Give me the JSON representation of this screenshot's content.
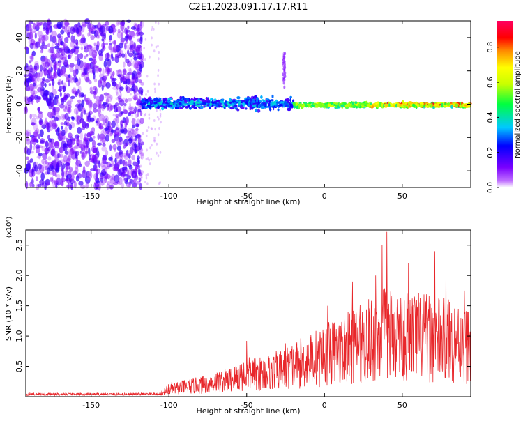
{
  "title": "C2E1.2023.091.17.17.R11",
  "chart_data": [
    {
      "type": "heatmap",
      "xlabel": "Height of straight line (km)",
      "ylabel": "Frequency (Hz)",
      "xlim": [
        -192,
        94
      ],
      "ylim": [
        -50,
        50
      ],
      "xticks": [
        -150,
        -100,
        -50,
        0,
        50
      ],
      "yticks": [
        -40,
        -20,
        0,
        20,
        40
      ],
      "colorbar": {
        "label": "Normalized spectral amplitude",
        "range": [
          0.0,
          0.95
        ],
        "ticks": [
          0.0,
          0.2,
          0.4,
          0.6,
          0.8
        ]
      },
      "description_regions": [
        {
          "x_range": [
            -192,
            -117
          ],
          "freq_range": [
            -50,
            50
          ],
          "amplitude": "low, scattered noise"
        },
        {
          "x_range": [
            -117,
            -20
          ],
          "freq_range": [
            -10,
            10
          ],
          "amplitude": "medium (0.2-0.5)"
        },
        {
          "x_range": [
            -20,
            94
          ],
          "freq_range": [
            -4,
            4
          ],
          "amplitude": "high (0.6-0.95)"
        }
      ]
    },
    {
      "type": "line",
      "xlabel": "Height of straight line (km)",
      "ylabel": "SNR (10 * v/v)",
      "y_multiplier": "(x10⁴)",
      "xlim": [
        -192,
        94
      ],
      "ylim": [
        0,
        2.75
      ],
      "xticks": [
        -150,
        -100,
        -50,
        0,
        50
      ],
      "yticks": [
        0.5,
        1.0,
        1.5,
        2.0,
        2.5
      ],
      "series": [
        {
          "color": "#e8262a",
          "envelope": {
            "x": [
              -192,
              -150,
              -120,
              -105,
              -100,
              -80,
              -60,
              -50,
              -40,
              -25,
              -10,
              0,
              10,
              20,
              30,
              40,
              50,
              60,
              70,
              80,
              94
            ],
            "y": [
              0.04,
              0.05,
              0.05,
              0.08,
              0.2,
              0.3,
              0.45,
              0.6,
              0.6,
              0.75,
              0.95,
              1.1,
              1.2,
              1.35,
              1.5,
              1.7,
              1.6,
              1.6,
              1.5,
              1.5,
              1.35
            ]
          },
          "peaks": [
            {
              "x": -50,
              "y": 0.92
            },
            {
              "x": -25,
              "y": 0.88
            },
            {
              "x": 2,
              "y": 1.5
            },
            {
              "x": 18,
              "y": 1.9
            },
            {
              "x": 33,
              "y": 2.0
            },
            {
              "x": 37,
              "y": 2.5
            },
            {
              "x": 40,
              "y": 2.72
            },
            {
              "x": 54,
              "y": 2.2
            },
            {
              "x": 71,
              "y": 2.4
            },
            {
              "x": 78,
              "y": 2.3
            },
            {
              "x": 90,
              "y": 1.75
            }
          ]
        }
      ]
    }
  ]
}
